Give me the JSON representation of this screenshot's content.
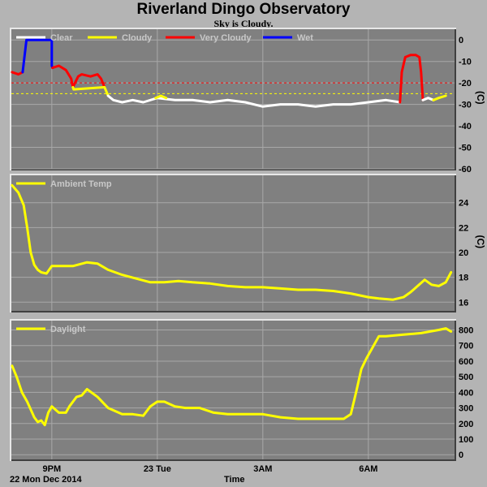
{
  "header": {
    "title": "Riverland Dingo Observatory",
    "subtitle": "Sky is Cloudy."
  },
  "footer": {
    "date": "22 Mon Dec 2014",
    "xaxis_title": "Time"
  },
  "colors": {
    "panel": "#808080",
    "grid": "#a8a8a8",
    "clear": "#ffffff",
    "cloudy": "#ffff00",
    "very_cloudy": "#ff0000",
    "wet": "#0000ff",
    "daylight": "#ffff00",
    "temp": "#ffff00"
  },
  "x_ticks": [
    {
      "label": "9PM",
      "hour": 21
    },
    {
      "label": "23 Tue",
      "hour": 24
    },
    {
      "label": "3AM",
      "hour": 27
    },
    {
      "label": "6AM",
      "hour": 30
    }
  ],
  "chart_data": [
    {
      "type": "line",
      "id": "sky",
      "ylabel": "(C)",
      "ylim": [
        -60,
        5
      ],
      "y_ticks": [
        0,
        -10,
        -20,
        -30,
        -40,
        -50,
        -60
      ],
      "xlim": [
        19.85,
        32.45
      ],
      "thresholds": [
        {
          "value": -20,
          "color": "#ff0000"
        },
        {
          "value": -25,
          "color": "#ffff00"
        }
      ],
      "legend": [
        {
          "label": "Clear",
          "color": "#ffffff"
        },
        {
          "label": "Cloudy",
          "color": "#ffff00"
        },
        {
          "label": "Very Cloudy",
          "color": "#ff0000"
        },
        {
          "label": "Wet",
          "color": "#0000ff"
        }
      ],
      "series": [
        {
          "name": "Very Cloudy",
          "color": "#ff0000",
          "x": [
            19.87,
            20.05,
            20.17
          ],
          "y": [
            -15,
            -16,
            -15
          ]
        },
        {
          "name": "Wet",
          "color": "#0000ff",
          "x": [
            20.17,
            20.28,
            20.4,
            21.0,
            21.0,
            21.02
          ],
          "y": [
            -15,
            0,
            0,
            0,
            -12,
            -13
          ]
        },
        {
          "name": "Very Cloudy",
          "color": "#ff0000",
          "x": [
            21.02,
            21.2,
            21.4,
            21.55,
            21.6,
            21.75,
            21.85,
            22.1,
            22.3,
            22.4,
            22.5
          ],
          "y": [
            -13,
            -12,
            -14,
            -18,
            -22,
            -17,
            -16,
            -17,
            -16,
            -18,
            -22
          ]
        },
        {
          "name": "Cloudy",
          "color": "#ffff00",
          "x": [
            21.6,
            21.62,
            22.5,
            22.6
          ],
          "y": [
            -22,
            -23,
            -22,
            -26
          ]
        },
        {
          "name": "Clear",
          "color": "#ffffff",
          "x": [
            22.6,
            22.75,
            23.0,
            23.3,
            23.6,
            24.0,
            24.5,
            25.0,
            25.5,
            26.0,
            26.5,
            27.0,
            27.5,
            28.0,
            28.5,
            29.0,
            29.5,
            30.0,
            30.5,
            30.9
          ],
          "y": [
            -26,
            -28,
            -29,
            -28,
            -29,
            -27,
            -28,
            -28,
            -29,
            -28,
            -29,
            -31,
            -30,
            -30,
            -31,
            -30,
            -30,
            -29,
            -28,
            -29
          ]
        },
        {
          "name": "Cloudy",
          "color": "#ffff00",
          "x": [
            23.95,
            24.1,
            24.25
          ],
          "y": [
            -27,
            -26,
            -27
          ]
        },
        {
          "name": "Very Cloudy",
          "color": "#ff0000",
          "x": [
            30.9,
            30.95,
            31.05,
            31.2,
            31.35,
            31.45,
            31.5,
            31.55
          ],
          "y": [
            -29,
            -15,
            -8,
            -7,
            -7,
            -8,
            -15,
            -28
          ]
        },
        {
          "name": "Clear",
          "color": "#ffffff",
          "x": [
            31.55,
            31.7,
            31.85
          ],
          "y": [
            -28,
            -27,
            -28
          ]
        },
        {
          "name": "Cloudy",
          "color": "#ffff00",
          "x": [
            31.85,
            32.0,
            32.2
          ],
          "y": [
            -28,
            -27,
            -26
          ]
        }
      ]
    },
    {
      "type": "line",
      "id": "temp",
      "ylabel": "(C)",
      "ylim": [
        15.3,
        26.2
      ],
      "y_ticks": [
        16,
        18,
        20,
        22,
        24
      ],
      "xlim": [
        19.85,
        32.45
      ],
      "legend": [
        {
          "label": "Ambient Temp",
          "color": "#ffff00"
        }
      ],
      "series": [
        {
          "name": "Ambient Temp",
          "color": "#ffff00",
          "x": [
            19.87,
            20.05,
            20.2,
            20.3,
            20.4,
            20.5,
            20.6,
            20.7,
            20.85,
            21.0,
            21.3,
            21.6,
            22.0,
            22.3,
            22.6,
            23.0,
            23.4,
            23.8,
            24.2,
            24.6,
            25.0,
            25.5,
            26.0,
            26.5,
            27.0,
            27.5,
            28.0,
            28.5,
            29.0,
            29.5,
            30.0,
            30.3,
            30.7,
            31.0,
            31.2,
            31.4,
            31.6,
            31.8,
            32.0,
            32.2,
            32.35
          ],
          "y": [
            25.4,
            24.8,
            23.8,
            22.0,
            20.0,
            19.0,
            18.6,
            18.4,
            18.3,
            18.9,
            18.9,
            18.9,
            19.2,
            19.1,
            18.6,
            18.2,
            17.9,
            17.6,
            17.6,
            17.7,
            17.6,
            17.5,
            17.3,
            17.2,
            17.2,
            17.1,
            17.0,
            17.0,
            16.9,
            16.7,
            16.4,
            16.3,
            16.2,
            16.4,
            16.8,
            17.3,
            17.8,
            17.4,
            17.3,
            17.6,
            18.4
          ]
        }
      ]
    },
    {
      "type": "line",
      "id": "daylight",
      "ylim": [
        -30,
        860
      ],
      "y_ticks": [
        0,
        100,
        200,
        300,
        400,
        500,
        600,
        700,
        800
      ],
      "xlim": [
        19.85,
        32.45
      ],
      "legend": [
        {
          "label": "Daylight",
          "color": "#ffff00"
        }
      ],
      "series": [
        {
          "name": "Daylight",
          "color": "#ffff00",
          "x": [
            19.87,
            20.0,
            20.15,
            20.3,
            20.5,
            20.6,
            20.7,
            20.8,
            20.9,
            21.0,
            21.2,
            21.4,
            21.5,
            21.7,
            21.85,
            22.0,
            22.3,
            22.6,
            23.0,
            23.3,
            23.6,
            23.8,
            24.0,
            24.2,
            24.5,
            24.8,
            25.2,
            25.6,
            26.0,
            26.5,
            27.0,
            27.5,
            28.0,
            28.5,
            29.0,
            29.3,
            29.5,
            29.65,
            29.8,
            29.95,
            30.1,
            30.3,
            30.5,
            31.0,
            31.5,
            32.0,
            32.2,
            32.35
          ],
          "y": [
            570,
            500,
            400,
            340,
            240,
            210,
            220,
            190,
            270,
            310,
            270,
            270,
            310,
            370,
            380,
            420,
            370,
            300,
            260,
            260,
            250,
            310,
            340,
            340,
            310,
            300,
            300,
            270,
            260,
            260,
            260,
            240,
            230,
            230,
            230,
            230,
            260,
            400,
            550,
            620,
            680,
            760,
            760,
            770,
            780,
            800,
            810,
            790
          ]
        }
      ]
    }
  ]
}
